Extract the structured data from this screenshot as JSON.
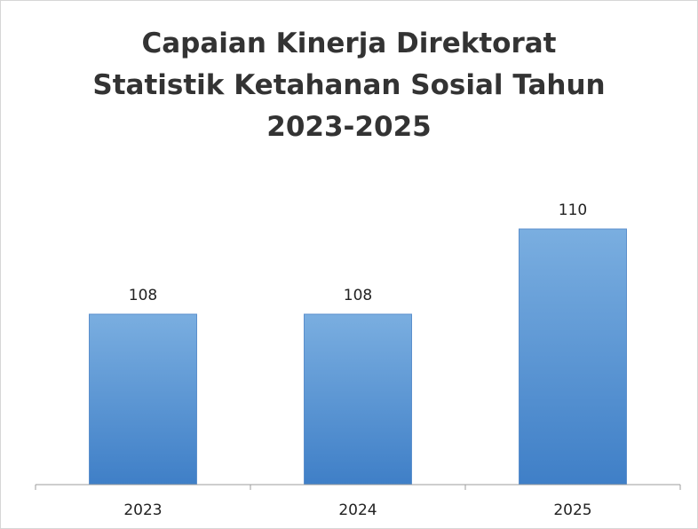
{
  "chart_data": {
    "type": "bar",
    "title_lines": [
      "Capaian Kinerja Direktorat",
      "Statistik Ketahanan Sosial Tahun",
      "2023-2025"
    ],
    "categories": [
      "2023",
      "2024",
      "2025"
    ],
    "values": [
      108,
      108,
      110
    ],
    "data_labels": [
      "108",
      "108",
      "110"
    ],
    "xlabel": "",
    "ylabel": "",
    "ylim": [
      104,
      111
    ],
    "y_axis_visible": false,
    "grid": false,
    "legend": "none",
    "colors": {
      "bar_top": "#7aaee0",
      "bar_bottom": "#3f7fc7",
      "bar_edge": "#5b8fcc",
      "axis": "#9e9e9e"
    }
  }
}
